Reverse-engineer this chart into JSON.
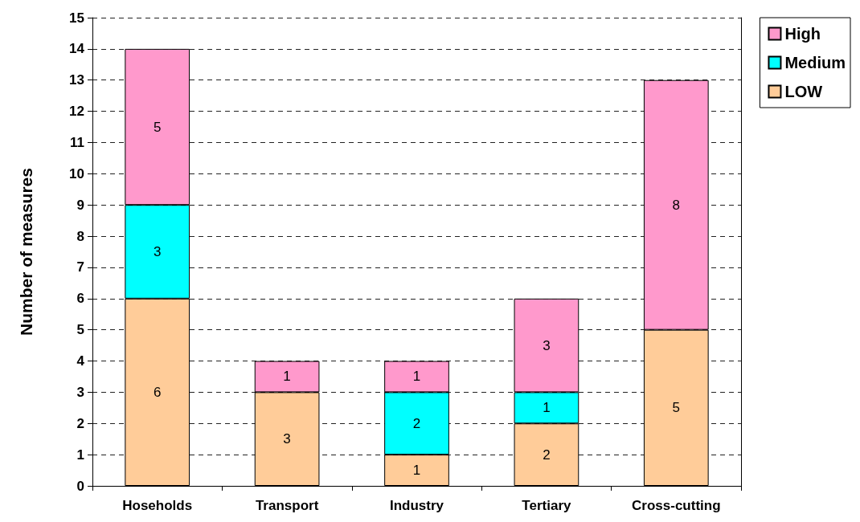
{
  "chart_data": {
    "type": "bar",
    "stacked": true,
    "ylabel": "Number of measures",
    "categories": [
      "Hoseholds",
      "Transport",
      "Industry",
      "Tertiary",
      "Cross-cutting"
    ],
    "series": [
      {
        "name": "LOW",
        "color": "#ffcc99",
        "values": [
          6,
          3,
          1,
          2,
          5
        ]
      },
      {
        "name": "Medium",
        "color": "#00ffff",
        "values": [
          3,
          null,
          2,
          1,
          null
        ]
      },
      {
        "name": "High",
        "color": "#ff99cc",
        "values": [
          5,
          1,
          1,
          3,
          8
        ]
      }
    ],
    "ylim": [
      0,
      15
    ],
    "yticks": [
      0,
      1,
      2,
      3,
      4,
      5,
      6,
      7,
      8,
      9,
      10,
      11,
      12,
      13,
      14,
      15
    ],
    "grid": "y",
    "legend": "top right",
    "data_labels": true
  }
}
